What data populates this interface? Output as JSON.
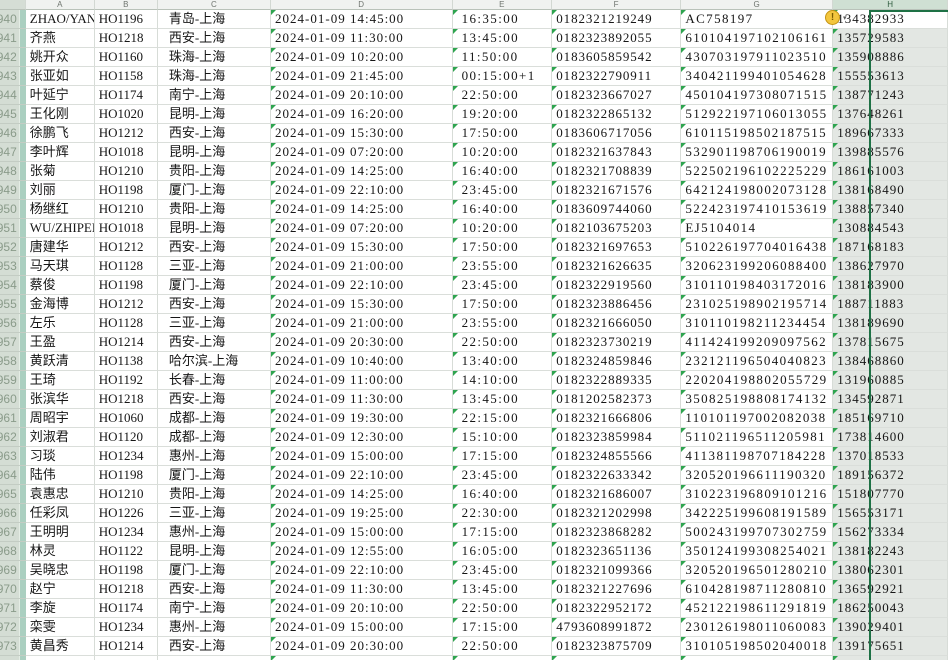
{
  "sheet": {
    "selected_column": "H",
    "active_cell_row": "940",
    "accent_colors": {
      "selection_border": "#1e7145",
      "selected_cell_fill": "#e3e7e3",
      "triangle_green": "#2ea44f",
      "gutter_highlight": "#aacfc0",
      "smart_tag_yellow": "#f3c63e"
    }
  },
  "column_headers": {
    "gutter": "",
    "a": "A",
    "b": "B",
    "c": "C",
    "d": "D",
    "e": "E",
    "f": "F",
    "g": "G",
    "h": "H"
  },
  "smart_tag": {
    "symbol": "!",
    "dropdown_glyph": "▾"
  },
  "rows": [
    {
      "n": "940",
      "name": "ZHAO/YAN",
      "flight": "HO1196",
      "route": "青岛-上海",
      "depart": "2024-01-09 14:45:00",
      "arrive": "16:35:00",
      "ticket": "0182321219249",
      "id_no": "AC758197",
      "phone": "134382933"
    },
    {
      "n": "941",
      "name": "齐燕",
      "flight": "HO1218",
      "route": "西安-上海",
      "depart": "2024-01-09 11:30:00",
      "arrive": "13:45:00",
      "ticket": "0182323892055",
      "id_no": "610104197102106161",
      "phone": "135729583"
    },
    {
      "n": "942",
      "name": "姚开众",
      "flight": "HO1160",
      "route": "珠海-上海",
      "depart": "2024-01-09 10:20:00",
      "arrive": "11:50:00",
      "ticket": "0183605859542",
      "id_no": "430703197911023510",
      "phone": "135908886"
    },
    {
      "n": "943",
      "name": "张亚如",
      "flight": "HO1158",
      "route": "珠海-上海",
      "depart": "2024-01-09 21:45:00",
      "arrive": "00:15:00+1",
      "ticket": "0182322790911",
      "id_no": "340421199401054628",
      "phone": "155553613"
    },
    {
      "n": "944",
      "name": "叶延宁",
      "flight": "HO1174",
      "route": "南宁-上海",
      "depart": "2024-01-09 20:10:00",
      "arrive": "22:50:00",
      "ticket": "0182323667027",
      "id_no": "450104197308071515",
      "phone": "138771243"
    },
    {
      "n": "945",
      "name": "王化刚",
      "flight": "HO1020",
      "route": "昆明-上海",
      "depart": "2024-01-09 16:20:00",
      "arrive": "19:20:00",
      "ticket": "0182322865132",
      "id_no": "512922197106013055",
      "phone": "137648261"
    },
    {
      "n": "946",
      "name": "徐鹏飞",
      "flight": "HO1212",
      "route": "西安-上海",
      "depart": "2024-01-09 15:30:00",
      "arrive": "17:50:00",
      "ticket": "0183606717056",
      "id_no": "610115198502187515",
      "phone": "189667333"
    },
    {
      "n": "947",
      "name": "李叶辉",
      "flight": "HO1018",
      "route": "昆明-上海",
      "depart": "2024-01-09 07:20:00",
      "arrive": "10:20:00",
      "ticket": "0182321637843",
      "id_no": "532901198706190019",
      "phone": "139885576"
    },
    {
      "n": "948",
      "name": "张菊",
      "flight": "HO1210",
      "route": "贵阳-上海",
      "depart": "2024-01-09 14:25:00",
      "arrive": "16:40:00",
      "ticket": "0182321708839",
      "id_no": "522502196102225229",
      "phone": "186161003"
    },
    {
      "n": "949",
      "name": "刘丽",
      "flight": "HO1198",
      "route": "厦门-上海",
      "depart": "2024-01-09 22:10:00",
      "arrive": "23:45:00",
      "ticket": "0182321671576",
      "id_no": "642124198002073128",
      "phone": "138168490"
    },
    {
      "n": "950",
      "name": "杨继红",
      "flight": "HO1210",
      "route": "贵阳-上海",
      "depart": "2024-01-09 14:25:00",
      "arrive": "16:40:00",
      "ticket": "0183609744060",
      "id_no": "522423197410153619",
      "phone": "138857340"
    },
    {
      "n": "951",
      "name": "WU/ZHIPENG",
      "flight": "HO1018",
      "route": "昆明-上海",
      "depart": "2024-01-09 07:20:00",
      "arrive": "10:20:00",
      "ticket": "0182103675203",
      "id_no": "EJ5104014",
      "phone": "130884543"
    },
    {
      "n": "952",
      "name": "唐建华",
      "flight": "HO1212",
      "route": "西安-上海",
      "depart": "2024-01-09 15:30:00",
      "arrive": "17:50:00",
      "ticket": "0182321697653",
      "id_no": "510226197704016438",
      "phone": "187168183"
    },
    {
      "n": "953",
      "name": "马天琪",
      "flight": "HO1128",
      "route": "三亚-上海",
      "depart": "2024-01-09 21:00:00",
      "arrive": "23:55:00",
      "ticket": "0182321626635",
      "id_no": "320623199206088400",
      "phone": "138627970"
    },
    {
      "n": "954",
      "name": "蔡俊",
      "flight": "HO1198",
      "route": "厦门-上海",
      "depart": "2024-01-09 22:10:00",
      "arrive": "23:45:00",
      "ticket": "0182322919560",
      "id_no": "310110198403172016",
      "phone": "138183900"
    },
    {
      "n": "955",
      "name": "金海博",
      "flight": "HO1212",
      "route": "西安-上海",
      "depart": "2024-01-09 15:30:00",
      "arrive": "17:50:00",
      "ticket": "0182323886456",
      "id_no": "231025198902195714",
      "phone": "188711883"
    },
    {
      "n": "956",
      "name": "左乐",
      "flight": "HO1128",
      "route": "三亚-上海",
      "depart": "2024-01-09 21:00:00",
      "arrive": "23:55:00",
      "ticket": "0182321666050",
      "id_no": "310110198211234454",
      "phone": "138189690"
    },
    {
      "n": "957",
      "name": "王盈",
      "flight": "HO1214",
      "route": "西安-上海",
      "depart": "2024-01-09 20:30:00",
      "arrive": "22:50:00",
      "ticket": "0182323730219",
      "id_no": "411424199209097562",
      "phone": "137815675"
    },
    {
      "n": "958",
      "name": "黄跃清",
      "flight": "HO1138",
      "route": "哈尔滨-上海",
      "depart": "2024-01-09 10:40:00",
      "arrive": "13:40:00",
      "ticket": "0182324859846",
      "id_no": "232121196504040823",
      "phone": "138468860"
    },
    {
      "n": "959",
      "name": "王琦",
      "flight": "HO1192",
      "route": "长春-上海",
      "depart": "2024-01-09 11:00:00",
      "arrive": "14:10:00",
      "ticket": "0182322889335",
      "id_no": "220204198802055729",
      "phone": "131960885"
    },
    {
      "n": "960",
      "name": "张滨华",
      "flight": "HO1218",
      "route": "西安-上海",
      "depart": "2024-01-09 11:30:00",
      "arrive": "13:45:00",
      "ticket": "0181202582373",
      "id_no": "350825198808174132",
      "phone": "134592871"
    },
    {
      "n": "961",
      "name": "周昭宇",
      "flight": "HO1060",
      "route": "成都-上海",
      "depart": "2024-01-09 19:30:00",
      "arrive": "22:15:00",
      "ticket": "0182321666806",
      "id_no": "110101197002082038",
      "phone": "185169710"
    },
    {
      "n": "962",
      "name": "刘淑君",
      "flight": "HO1120",
      "route": "成都-上海",
      "depart": "2024-01-09 12:30:00",
      "arrive": "15:10:00",
      "ticket": "0182323859984",
      "id_no": "511021196511205981",
      "phone": "173814600"
    },
    {
      "n": "963",
      "name": "习琰",
      "flight": "HO1234",
      "route": "惠州-上海",
      "depart": "2024-01-09 15:00:00",
      "arrive": "17:15:00",
      "ticket": "0182324855566",
      "id_no": "411381198707184228",
      "phone": "137018533"
    },
    {
      "n": "964",
      "name": "陆伟",
      "flight": "HO1198",
      "route": "厦门-上海",
      "depart": "2024-01-09 22:10:00",
      "arrive": "23:45:00",
      "ticket": "0182322633342",
      "id_no": "320520196611190320",
      "phone": "189156372"
    },
    {
      "n": "965",
      "name": "袁惠忠",
      "flight": "HO1210",
      "route": "贵阳-上海",
      "depart": "2024-01-09 14:25:00",
      "arrive": "16:40:00",
      "ticket": "0182321686007",
      "id_no": "310223196809101216",
      "phone": "151807770"
    },
    {
      "n": "966",
      "name": "任彩凤",
      "flight": "HO1226",
      "route": "三亚-上海",
      "depart": "2024-01-09 19:25:00",
      "arrive": "22:30:00",
      "ticket": "0182321202998",
      "id_no": "342225199608191589",
      "phone": "156553171"
    },
    {
      "n": "967",
      "name": "王明明",
      "flight": "HO1234",
      "route": "惠州-上海",
      "depart": "2024-01-09 15:00:00",
      "arrive": "17:15:00",
      "ticket": "0182323868282",
      "id_no": "500243199707302759",
      "phone": "156273334"
    },
    {
      "n": "968",
      "name": "林灵",
      "flight": "HO1122",
      "route": "昆明-上海",
      "depart": "2024-01-09 12:55:00",
      "arrive": "16:05:00",
      "ticket": "0182323651136",
      "id_no": "350124199308254021",
      "phone": "138182243"
    },
    {
      "n": "969",
      "name": "吴晓忠",
      "flight": "HO1198",
      "route": "厦门-上海",
      "depart": "2024-01-09 22:10:00",
      "arrive": "23:45:00",
      "ticket": "0182321099366",
      "id_no": "320520196501280210",
      "phone": "138062301"
    },
    {
      "n": "970",
      "name": "赵宁",
      "flight": "HO1218",
      "route": "西安-上海",
      "depart": "2024-01-09 11:30:00",
      "arrive": "13:45:00",
      "ticket": "0182321227696",
      "id_no": "610428198711280810",
      "phone": "136592921"
    },
    {
      "n": "971",
      "name": "李旋",
      "flight": "HO1174",
      "route": "南宁-上海",
      "depart": "2024-01-09 20:10:00",
      "arrive": "22:50:00",
      "ticket": "0182322952172",
      "id_no": "452122198611291819",
      "phone": "186250043"
    },
    {
      "n": "972",
      "name": "栾雯",
      "flight": "HO1234",
      "route": "惠州-上海",
      "depart": "2024-01-09 15:00:00",
      "arrive": "17:15:00",
      "ticket": "4793608991872",
      "id_no": "230126198011060083",
      "phone": "139029401"
    },
    {
      "n": "973",
      "name": "黄昌秀",
      "flight": "HO1214",
      "route": "西安-上海",
      "depart": "2024-01-09 20:30:00",
      "arrive": "22:50:00",
      "ticket": "0182323875709",
      "id_no": "310105198502040018",
      "phone": "139175651"
    },
    {
      "n": "974",
      "name": "",
      "flight": "",
      "route": "",
      "depart": "",
      "arrive": "",
      "ticket": "",
      "id_no": "",
      "phone": ""
    }
  ]
}
